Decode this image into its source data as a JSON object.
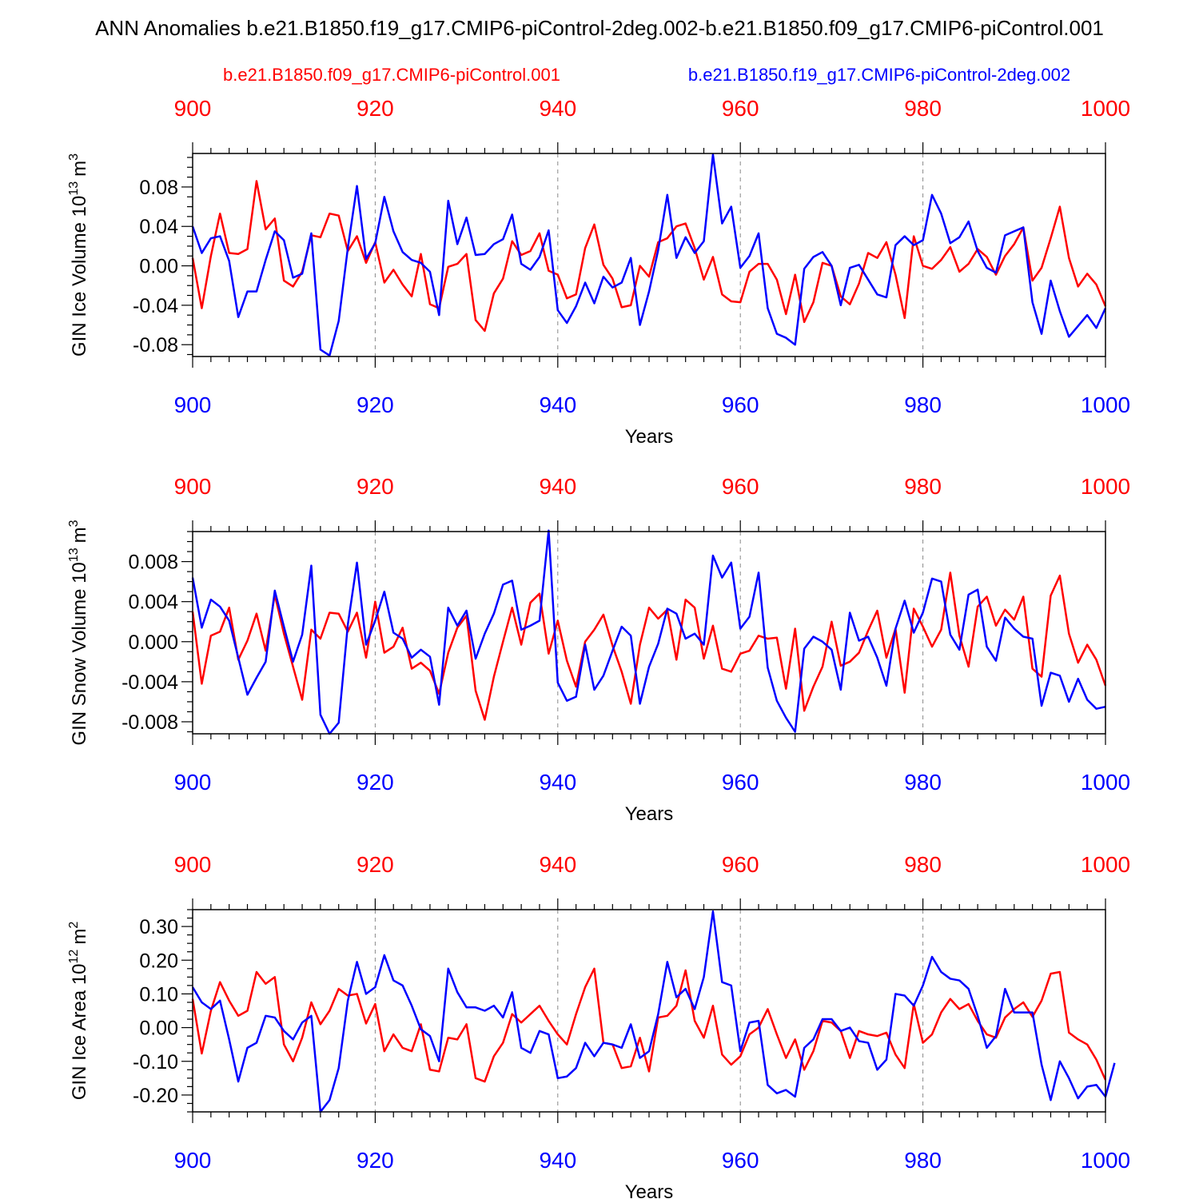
{
  "title": "ANN Anomalies b.e21.B1850.f19_g17.CMIP6-piControl-2deg.002-b.e21.B1850.f09_g17.CMIP6-piControl.001",
  "legend": {
    "red_label": "b.e21.B1850.f09_g17.CMIP6-piControl.001",
    "blue_label": "b.e21.B1850.f19_g17.CMIP6-piControl-2deg.002"
  },
  "colors": {
    "red": "#ff0000",
    "blue": "#0000ff",
    "axis": "#000000",
    "grid": "#888888"
  },
  "chart_data": [
    {
      "type": "line",
      "ylabel": "GIN Ice Volume 10",
      "ylabel_sup": "13",
      "ylabel_unit": "m",
      "ylabel_unit_sup": "3",
      "xlabel": "Years",
      "xlim": [
        900,
        1000
      ],
      "ylim": [
        -0.092,
        0.114
      ],
      "x_ticks": [
        900,
        920,
        940,
        960,
        980,
        1000
      ],
      "x_tick_labels": [
        "900",
        "920",
        "940",
        "960",
        "980",
        "1000"
      ],
      "y_ticks": [
        -0.08,
        -0.04,
        0.0,
        0.04,
        0.08
      ],
      "y_tick_labels": [
        "-0.08",
        "-0.04",
        "0.00",
        "0.04",
        "0.08"
      ],
      "series": [
        {
          "name": "b.e21.B1850.f09_g17.CMIP6-piControl.001",
          "color": "red",
          "values": [
            0.008,
            -0.043,
            0.01,
            0.053,
            0.013,
            0.012,
            0.017,
            0.086,
            0.037,
            0.048,
            -0.015,
            -0.021,
            -0.006,
            0.031,
            0.029,
            0.053,
            0.051,
            0.015,
            0.03,
            0.003,
            0.024,
            -0.017,
            -0.004,
            -0.019,
            -0.031,
            0.012,
            -0.039,
            -0.043,
            -0.001,
            0.002,
            0.012,
            -0.055,
            -0.066,
            -0.028,
            -0.013,
            0.025,
            0.011,
            0.015,
            0.033,
            -0.005,
            -0.009,
            -0.033,
            -0.029,
            0.018,
            0.042,
            0.001,
            -0.013,
            -0.042,
            -0.04,
            0.0,
            -0.011,
            0.024,
            0.028,
            0.04,
            0.043,
            0.018,
            -0.014,
            0.009,
            -0.029,
            -0.036,
            -0.037,
            -0.006,
            0.002,
            0.002,
            -0.014,
            -0.049,
            -0.009,
            -0.057,
            -0.037,
            0.003,
            0.0,
            -0.031,
            -0.039,
            -0.018,
            0.013,
            0.008,
            0.024,
            -0.009,
            -0.053,
            0.03,
            0.0,
            -0.003,
            0.006,
            0.019,
            -0.006,
            0.002,
            0.017,
            0.009,
            -0.009,
            0.01,
            0.022,
            0.039,
            -0.015,
            -0.002,
            0.028,
            0.06,
            0.008,
            -0.021,
            -0.008,
            -0.019,
            -0.041
          ]
        },
        {
          "name": "b.e21.B1850.f19_g17.CMIP6-piControl-2deg.002",
          "color": "blue",
          "values": [
            0.04,
            0.013,
            0.028,
            0.03,
            0.005,
            -0.052,
            -0.026,
            -0.026,
            0.006,
            0.035,
            0.026,
            -0.012,
            -0.008,
            0.033,
            -0.085,
            -0.091,
            -0.056,
            0.018,
            0.081,
            0.007,
            0.023,
            0.07,
            0.035,
            0.014,
            0.006,
            0.003,
            -0.006,
            -0.05,
            0.066,
            0.022,
            0.049,
            0.011,
            0.012,
            0.022,
            0.027,
            0.052,
            0.002,
            -0.004,
            0.009,
            0.036,
            -0.045,
            -0.058,
            -0.041,
            -0.017,
            -0.038,
            -0.011,
            -0.022,
            -0.017,
            0.008,
            -0.06,
            -0.026,
            0.016,
            0.072,
            0.008,
            0.029,
            0.013,
            0.025,
            0.113,
            0.043,
            0.06,
            -0.002,
            0.01,
            0.033,
            -0.043,
            -0.069,
            -0.073,
            -0.08,
            -0.003,
            0.009,
            0.014,
            0.0,
            -0.04,
            -0.002,
            0.001,
            -0.014,
            -0.029,
            -0.032,
            0.021,
            0.03,
            0.021,
            0.026,
            0.072,
            0.053,
            0.023,
            0.029,
            0.045,
            0.015,
            -0.002,
            -0.007,
            0.031,
            0.035,
            0.039,
            -0.037,
            -0.069,
            -0.015,
            -0.046,
            -0.072,
            -0.061,
            -0.05,
            -0.063,
            -0.043
          ]
        }
      ]
    },
    {
      "type": "line",
      "ylabel": "GIN Snow Volume 10",
      "ylabel_sup": "13",
      "ylabel_unit": "m",
      "ylabel_unit_sup": "3",
      "xlabel": "Years",
      "xlim": [
        900,
        1000
      ],
      "ylim": [
        -0.0092,
        0.011
      ],
      "x_ticks": [
        900,
        920,
        940,
        960,
        980,
        1000
      ],
      "x_tick_labels": [
        "900",
        "920",
        "940",
        "960",
        "980",
        "1000"
      ],
      "y_ticks": [
        -0.008,
        -0.004,
        0.0,
        0.004,
        0.008
      ],
      "y_tick_labels": [
        "-0.008",
        "-0.004",
        "0.000",
        "0.004",
        "0.008"
      ],
      "series": [
        {
          "name": "b.e21.B1850.f09_g17.CMIP6-piControl.001",
          "color": "red",
          "values": [
            0.003,
            -0.0042,
            0.0006,
            0.001,
            0.0034,
            -0.0018,
            0.0001,
            0.0028,
            -0.0009,
            0.0047,
            0.0008,
            -0.0025,
            -0.0058,
            0.0012,
            0.0003,
            0.0029,
            0.0028,
            0.001,
            0.0029,
            -0.0016,
            0.004,
            -0.0011,
            -0.0005,
            0.0014,
            -0.0027,
            -0.0021,
            -0.0029,
            -0.0052,
            -0.0011,
            0.0014,
            0.0026,
            -0.0049,
            -0.0078,
            -0.0035,
            0.0,
            0.0034,
            -0.0003,
            0.0039,
            0.0048,
            -0.0012,
            0.0021,
            -0.0019,
            -0.0045,
            0.0,
            0.0012,
            0.0027,
            -0.0004,
            -0.003,
            -0.0062,
            -0.0003,
            0.0034,
            0.0023,
            0.0032,
            -0.0018,
            0.0042,
            0.0034,
            -0.0017,
            0.0016,
            -0.0027,
            -0.003,
            -0.0012,
            -0.0009,
            0.0006,
            0.0003,
            0.0004,
            -0.0047,
            0.0013,
            -0.0069,
            -0.0045,
            -0.0025,
            0.002,
            -0.0024,
            -0.002,
            -0.0011,
            0.0011,
            0.0031,
            -0.0016,
            0.0013,
            -0.0051,
            0.0033,
            0.0015,
            -0.0005,
            0.0012,
            0.0069,
            0.0006,
            -0.0025,
            0.0035,
            0.0045,
            0.0016,
            0.0032,
            0.0022,
            0.0045,
            -0.0027,
            -0.0035,
            0.0046,
            0.0066,
            0.0008,
            -0.0021,
            -0.0003,
            -0.0018,
            -0.0044
          ]
        },
        {
          "name": "b.e21.B1850.f19_g17.CMIP6-piControl-2deg.002",
          "color": "blue",
          "values": [
            0.0064,
            0.0014,
            0.0042,
            0.0035,
            0.0021,
            -0.0016,
            -0.0053,
            -0.0036,
            -0.002,
            0.0051,
            0.0015,
            -0.002,
            0.0007,
            0.0076,
            -0.0073,
            -0.0092,
            -0.0081,
            0.0017,
            0.0079,
            -0.0003,
            0.0021,
            0.005,
            0.0009,
            0.0003,
            -0.0016,
            -0.0008,
            -0.0015,
            -0.0063,
            0.0034,
            0.0016,
            0.0031,
            -0.0017,
            0.0008,
            0.0028,
            0.0057,
            0.0061,
            0.0012,
            0.0016,
            0.0021,
            0.0111,
            -0.0041,
            -0.0059,
            -0.0055,
            -0.0003,
            -0.0048,
            -0.0034,
            -0.0009,
            0.0015,
            0.0006,
            -0.0062,
            -0.0025,
            -0.0002,
            0.0033,
            0.0028,
            0.0003,
            0.0008,
            -0.0003,
            0.0086,
            0.0064,
            0.0079,
            0.0013,
            0.0025,
            0.0069,
            -0.0026,
            -0.0059,
            -0.0076,
            -0.009,
            -0.0007,
            0.0005,
            0.0,
            -0.0008,
            -0.0048,
            0.0029,
            0.0001,
            0.0005,
            -0.0016,
            -0.0044,
            0.0013,
            0.0041,
            0.0009,
            0.0029,
            0.0063,
            0.006,
            0.0007,
            -0.0008,
            0.0047,
            0.0052,
            -0.0005,
            -0.0019,
            0.0024,
            0.0013,
            0.0005,
            0.0003,
            -0.0064,
            -0.0031,
            -0.0034,
            -0.006,
            -0.0037,
            -0.0058,
            -0.0067,
            -0.0065
          ]
        }
      ]
    },
    {
      "type": "line",
      "ylabel": "GIN Ice Area 10",
      "ylabel_sup": "12",
      "ylabel_unit": "m",
      "ylabel_unit_sup": "2",
      "xlabel": "Years",
      "xlim": [
        900,
        1000
      ],
      "ylim": [
        -0.25,
        0.35
      ],
      "x_ticks": [
        900,
        920,
        940,
        960,
        980,
        1000
      ],
      "x_tick_labels": [
        "900",
        "920",
        "940",
        "960",
        "980",
        "1000"
      ],
      "y_ticks": [
        -0.2,
        -0.1,
        0.0,
        0.1,
        0.2,
        0.3
      ],
      "y_tick_labels": [
        "-0.20",
        "-0.10",
        "0.00",
        "0.10",
        "0.20",
        "0.30"
      ],
      "series": [
        {
          "name": "b.e21.B1850.f09_g17.CMIP6-piControl.001",
          "color": "red",
          "values": [
            0.085,
            -0.077,
            0.05,
            0.135,
            0.08,
            0.035,
            0.05,
            0.165,
            0.13,
            0.15,
            -0.05,
            -0.1,
            -0.03,
            0.075,
            0.01,
            0.05,
            0.115,
            0.095,
            0.1,
            0.012,
            0.07,
            -0.07,
            -0.02,
            -0.06,
            -0.07,
            0.01,
            -0.125,
            -0.13,
            -0.03,
            -0.035,
            0.01,
            -0.15,
            -0.16,
            -0.085,
            -0.045,
            0.04,
            0.015,
            0.04,
            0.065,
            0.02,
            -0.02,
            -0.05,
            0.04,
            0.12,
            0.175,
            -0.045,
            -0.05,
            -0.12,
            -0.115,
            -0.03,
            -0.13,
            0.03,
            0.035,
            0.065,
            0.17,
            0.02,
            -0.03,
            0.065,
            -0.08,
            -0.11,
            -0.085,
            -0.02,
            0.0,
            0.055,
            -0.02,
            -0.09,
            -0.035,
            -0.125,
            -0.07,
            0.02,
            0.015,
            -0.01,
            -0.09,
            -0.01,
            -0.02,
            -0.025,
            -0.015,
            -0.08,
            -0.12,
            0.07,
            -0.045,
            -0.02,
            0.045,
            0.085,
            0.055,
            0.07,
            0.02,
            -0.02,
            -0.03,
            0.03,
            0.055,
            0.075,
            0.032,
            0.08,
            0.16,
            0.165,
            -0.015,
            -0.035,
            -0.05,
            -0.095,
            -0.155
          ]
        },
        {
          "name": "b.e21.B1850.f19_g17.CMIP6-piControl-2deg.002",
          "color": "blue",
          "values": [
            0.12,
            0.075,
            0.055,
            0.08,
            -0.035,
            -0.16,
            -0.06,
            -0.045,
            0.035,
            0.03,
            -0.01,
            -0.035,
            0.015,
            0.035,
            -0.25,
            -0.215,
            -0.12,
            0.08,
            0.195,
            0.1,
            0.12,
            0.215,
            0.14,
            0.125,
            0.065,
            -0.005,
            -0.025,
            -0.1,
            0.175,
            0.105,
            0.06,
            0.06,
            0.05,
            0.065,
            0.03,
            0.105,
            -0.06,
            -0.075,
            -0.01,
            -0.02,
            -0.15,
            -0.145,
            -0.12,
            -0.045,
            -0.085,
            -0.045,
            -0.05,
            -0.06,
            0.01,
            -0.09,
            -0.07,
            0.04,
            0.195,
            0.09,
            0.115,
            0.055,
            0.15,
            0.345,
            0.135,
            0.125,
            -0.07,
            0.015,
            0.02,
            -0.17,
            -0.195,
            -0.185,
            -0.205,
            -0.06,
            -0.035,
            0.025,
            0.025,
            -0.01,
            0.0,
            -0.04,
            -0.045,
            -0.125,
            -0.095,
            0.1,
            0.095,
            0.065,
            0.125,
            0.21,
            0.165,
            0.145,
            0.14,
            0.115,
            0.035,
            -0.06,
            -0.025,
            0.115,
            0.045,
            0.045,
            0.045,
            -0.11,
            -0.215,
            -0.1,
            -0.15,
            -0.21,
            -0.175,
            -0.17,
            -0.205,
            -0.105
          ]
        }
      ]
    }
  ]
}
